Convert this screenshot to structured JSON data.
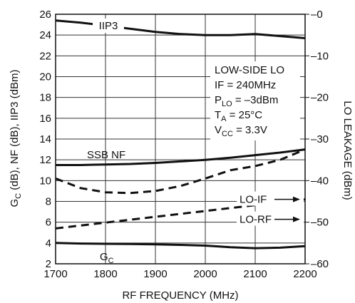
{
  "chart_data": {
    "type": "line",
    "xlabel": "RF FREQUENCY (MHz)",
    "ylabel_left": {
      "main": "G",
      "sub": "C",
      "rest": " (dB), NF (dB), IIP3 (dBm)"
    },
    "ylabel_right": "LO LEAKAGE (dBm)",
    "xlim": [
      1700,
      2200
    ],
    "ylim_left": [
      2,
      26
    ],
    "ylim_right": [
      -60,
      0
    ],
    "x_ticks": [
      1700,
      1800,
      1900,
      2000,
      2100,
      2200
    ],
    "y_ticks_left": [
      2,
      4,
      6,
      8,
      10,
      12,
      14,
      16,
      18,
      20,
      22,
      24,
      26
    ],
    "y_ticks_right": [
      -60,
      -50,
      -40,
      -30,
      -20,
      -10,
      0
    ],
    "y_ticks_right_labels": [
      "–60",
      "–50",
      "–40",
      "–30",
      "–20",
      "–10",
      "–0"
    ],
    "grid": true,
    "series": [
      {
        "name": "IIP3",
        "axis": "left",
        "style": "solid",
        "x": [
          1700,
          1750,
          1800,
          1850,
          1900,
          1950,
          2000,
          2050,
          2100,
          2150,
          2200
        ],
        "y": [
          25.4,
          25.2,
          24.9,
          24.6,
          24.3,
          24.1,
          24.0,
          24.0,
          24.1,
          23.9,
          23.7
        ]
      },
      {
        "name": "SSB NF",
        "axis": "left",
        "style": "solid",
        "x": [
          1700,
          1750,
          1800,
          1850,
          1900,
          1950,
          2000,
          2050,
          2100,
          2150,
          2200
        ],
        "y": [
          11.5,
          11.5,
          11.55,
          11.6,
          11.7,
          11.85,
          12.0,
          12.2,
          12.45,
          12.7,
          13.0
        ]
      },
      {
        "name": "G",
        "name_sub": "C",
        "axis": "left",
        "style": "solid",
        "x": [
          1700,
          1750,
          1800,
          1850,
          1900,
          1950,
          2000,
          2050,
          2100,
          2150,
          2200
        ],
        "y": [
          4.0,
          3.95,
          3.92,
          3.9,
          3.87,
          3.82,
          3.75,
          3.6,
          3.5,
          3.55,
          3.7
        ]
      },
      {
        "name": "LO-IF",
        "axis": "right",
        "style": "dashed",
        "x": [
          1700,
          1750,
          1800,
          1850,
          1900,
          1950,
          2000,
          2050,
          2100,
          2150,
          2200
        ],
        "y": [
          -39.5,
          -41.8,
          -42.8,
          -43.0,
          -42.5,
          -41.3,
          -39.5,
          -37.5,
          -36.5,
          -35.0,
          -32.5
        ]
      },
      {
        "name": "LO-RF",
        "axis": "right",
        "style": "dashed",
        "x": [
          1700,
          2200
        ],
        "y": [
          -51.5,
          -44.5
        ]
      }
    ],
    "annotations": {
      "iip3": "IIP3",
      "ssb_nf": "SSB NF",
      "gc": {
        "main": "G",
        "sub": "C"
      },
      "lo_if": "LO-IF",
      "lo_rf": "LO-RF",
      "conditions": [
        {
          "main": "LOW-SIDE LO"
        },
        {
          "main": "IF = 240MHz"
        },
        {
          "main": "P",
          "sub": "LO",
          "rest": " = –3dBm"
        },
        {
          "main": "T",
          "sub": "A",
          "rest": " = 25°C"
        },
        {
          "main": "V",
          "sub": "CC",
          "rest": " = 3.3V"
        }
      ]
    }
  }
}
